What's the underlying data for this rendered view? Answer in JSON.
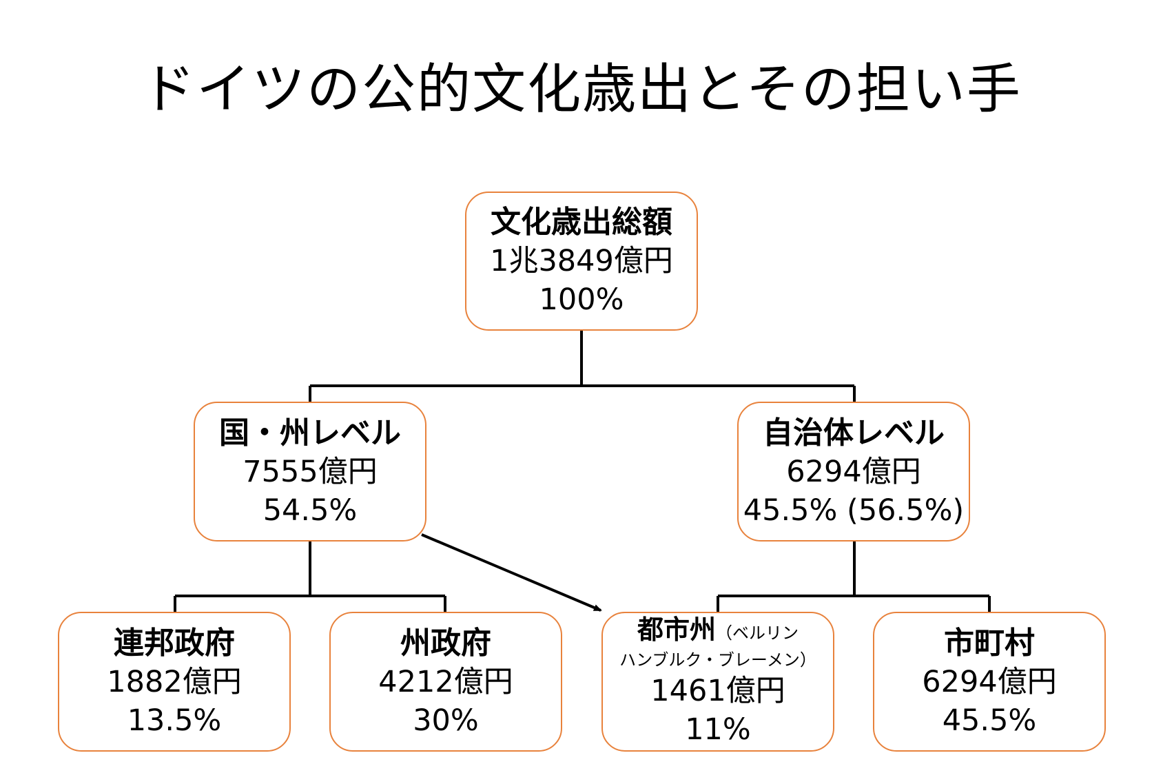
{
  "title": "ドイツの公的文化歳出とその担い手",
  "colors": {
    "box_border": "#e8823c",
    "connector": "#000000"
  },
  "nodes": {
    "total": {
      "label": "文化歳出総額",
      "amount": "1兆3849億円",
      "share": "100%"
    },
    "state": {
      "label": "国・州レベル",
      "amount": "7555億円",
      "share": "54.5%"
    },
    "municipal": {
      "label": "自治体レベル",
      "amount": "6294億円",
      "share": "45.5% (56.5%)"
    },
    "federal": {
      "label": "連邦政府",
      "amount": "1882億円",
      "share": "13.5%"
    },
    "land": {
      "label": "州政府",
      "amount": "4212億円",
      "share": "30%"
    },
    "citystate": {
      "label": "都市州",
      "note_1": "（ベルリン",
      "note_2": "ハンブルク・ブレーメン）",
      "amount": "1461億円",
      "share": "11%"
    },
    "towns": {
      "label": "市町村",
      "amount": "6294億円",
      "share": "45.5%"
    }
  }
}
